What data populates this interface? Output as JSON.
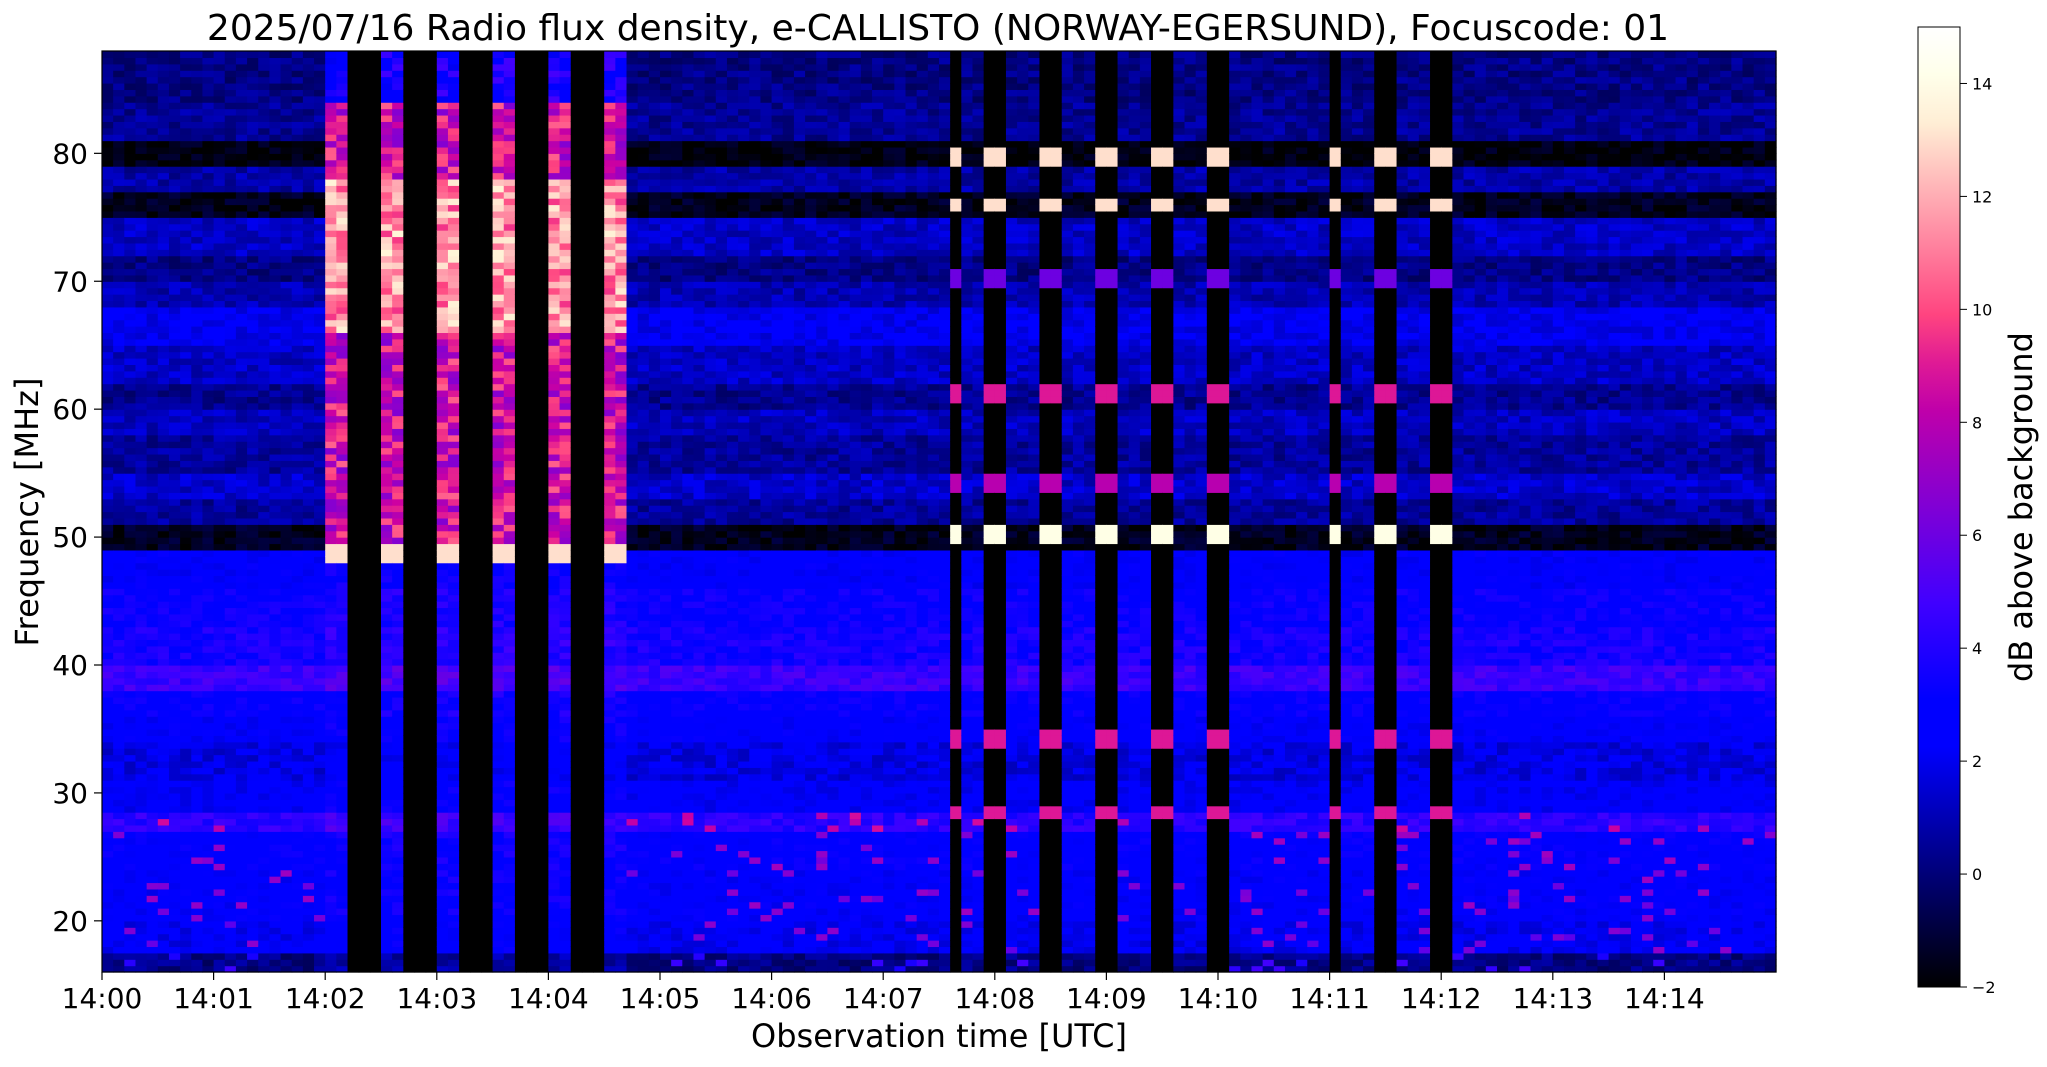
{
  "chart_data": {
    "type": "heatmap",
    "title": "2025/07/16  Radio flux density, e-CALLISTO (NORWAY-EGERSUND), Focuscode: 01",
    "xlabel": "Observation time [UTC]",
    "ylabel": "Frequency [MHz]",
    "colorbar_label": "dB above background",
    "colormap": "gnuplot2",
    "x_range_minutes": [
      0,
      15
    ],
    "ylim": [
      16,
      88
    ],
    "clim": [
      -2,
      15
    ],
    "x_ticks": [
      {
        "minute": 0,
        "label": "14:00"
      },
      {
        "minute": 1,
        "label": "14:01"
      },
      {
        "minute": 2,
        "label": "14:02"
      },
      {
        "minute": 3,
        "label": "14:03"
      },
      {
        "minute": 4,
        "label": "14:04"
      },
      {
        "minute": 5,
        "label": "14:05"
      },
      {
        "minute": 6,
        "label": "14:06"
      },
      {
        "minute": 7,
        "label": "14:07"
      },
      {
        "minute": 8,
        "label": "14:08"
      },
      {
        "minute": 9,
        "label": "14:09"
      },
      {
        "minute": 10,
        "label": "14:10"
      },
      {
        "minute": 11,
        "label": "14:11"
      },
      {
        "minute": 12,
        "label": "14:12"
      },
      {
        "minute": 13,
        "label": "14:13"
      },
      {
        "minute": 14,
        "label": "14:14"
      }
    ],
    "y_ticks": [
      {
        "value": 20,
        "label": "20"
      },
      {
        "value": 30,
        "label": "30"
      },
      {
        "value": 40,
        "label": "40"
      },
      {
        "value": 50,
        "label": "50"
      },
      {
        "value": 60,
        "label": "60"
      },
      {
        "value": 70,
        "label": "70"
      },
      {
        "value": 80,
        "label": "80"
      }
    ],
    "colorbar_ticks": [
      {
        "value": -2,
        "label": "−2"
      },
      {
        "value": 0,
        "label": "0"
      },
      {
        "value": 2,
        "label": "2"
      },
      {
        "value": 4,
        "label": "4"
      },
      {
        "value": 6,
        "label": "6"
      },
      {
        "value": 8,
        "label": "8"
      },
      {
        "value": 10,
        "label": "10"
      },
      {
        "value": 12,
        "label": "12"
      },
      {
        "value": 14,
        "label": "14"
      }
    ],
    "background_bands_mhz": [
      {
        "f0": 16,
        "f1": 17.5,
        "db": 0.2
      },
      {
        "f0": 17.5,
        "f1": 20,
        "db": 2.2
      },
      {
        "f0": 20,
        "f1": 24,
        "db": 2.6
      },
      {
        "f0": 24,
        "f1": 27,
        "db": 2.8
      },
      {
        "f0": 27,
        "f1": 28.5,
        "db": 4.2
      },
      {
        "f0": 28.5,
        "f1": 31,
        "db": 2.4
      },
      {
        "f0": 31,
        "f1": 34,
        "db": 1.8
      },
      {
        "f0": 34,
        "f1": 36,
        "db": 2.6
      },
      {
        "f0": 36,
        "f1": 38,
        "db": 3.0
      },
      {
        "f0": 38,
        "f1": 40,
        "db": 4.6
      },
      {
        "f0": 40,
        "f1": 43,
        "db": 3.6
      },
      {
        "f0": 43,
        "f1": 46,
        "db": 3.2
      },
      {
        "f0": 46,
        "f1": 49,
        "db": 2.6
      },
      {
        "f0": 49,
        "f1": 51,
        "db": -1.5
      },
      {
        "f0": 51,
        "f1": 53,
        "db": 0.6
      },
      {
        "f0": 53,
        "f1": 55,
        "db": 1.4
      },
      {
        "f0": 55,
        "f1": 58,
        "db": 0.6
      },
      {
        "f0": 58,
        "f1": 60,
        "db": 1.2
      },
      {
        "f0": 60,
        "f1": 62,
        "db": 0.4
      },
      {
        "f0": 62,
        "f1": 65,
        "db": 1.3
      },
      {
        "f0": 65,
        "f1": 68,
        "db": 2.1
      },
      {
        "f0": 68,
        "f1": 70,
        "db": 1.0
      },
      {
        "f0": 70,
        "f1": 72,
        "db": 0.2
      },
      {
        "f0": 72,
        "f1": 75,
        "db": 1.3
      },
      {
        "f0": 75,
        "f1": 77,
        "db": -1.5
      },
      {
        "f0": 77,
        "f1": 79,
        "db": 0.8
      },
      {
        "f0": 79,
        "f1": 81,
        "db": -1.8
      },
      {
        "f0": 81,
        "f1": 84,
        "db": 0.5
      },
      {
        "f0": 84,
        "f1": 88,
        "db": 0.2
      }
    ],
    "bright_bursts_minutes": [
      {
        "t0": 2.0,
        "t1": 2.18
      },
      {
        "t0": 2.5,
        "t1": 2.68
      },
      {
        "t0": 3.0,
        "t1": 3.18
      },
      {
        "t0": 3.52,
        "t1": 3.7
      },
      {
        "t0": 4.0,
        "t1": 4.18
      },
      {
        "t0": 4.5,
        "t1": 4.68
      }
    ],
    "dark_gaps_minutes": [
      {
        "t0": 2.18,
        "t1": 2.5
      },
      {
        "t0": 2.68,
        "t1": 3.0
      },
      {
        "t0": 3.18,
        "t1": 3.52
      },
      {
        "t0": 3.7,
        "t1": 4.0
      },
      {
        "t0": 4.18,
        "t1": 4.5
      },
      {
        "t0": 7.6,
        "t1": 7.68
      },
      {
        "t0": 7.95,
        "t1": 8.15
      },
      {
        "t0": 8.45,
        "t1": 8.65
      },
      {
        "t0": 8.95,
        "t1": 9.15
      },
      {
        "t0": 9.45,
        "t1": 9.65
      },
      {
        "t0": 9.95,
        "t1": 10.15
      },
      {
        "t0": 11.0,
        "t1": 11.08
      },
      {
        "t0": 11.45,
        "t1": 11.65
      },
      {
        "t0": 11.95,
        "t1": 12.15
      }
    ],
    "emission_lines_mhz": [
      {
        "f": 28.6,
        "db": 9
      },
      {
        "f": 34.3,
        "db": 9
      },
      {
        "f": 50.2,
        "db": 14
      },
      {
        "f": 54.2,
        "db": 8
      },
      {
        "f": 61.3,
        "db": 9
      },
      {
        "f": 70.3,
        "db": 6
      },
      {
        "f": 76.0,
        "db": 13
      },
      {
        "f": 79.8,
        "db": 13
      }
    ]
  }
}
